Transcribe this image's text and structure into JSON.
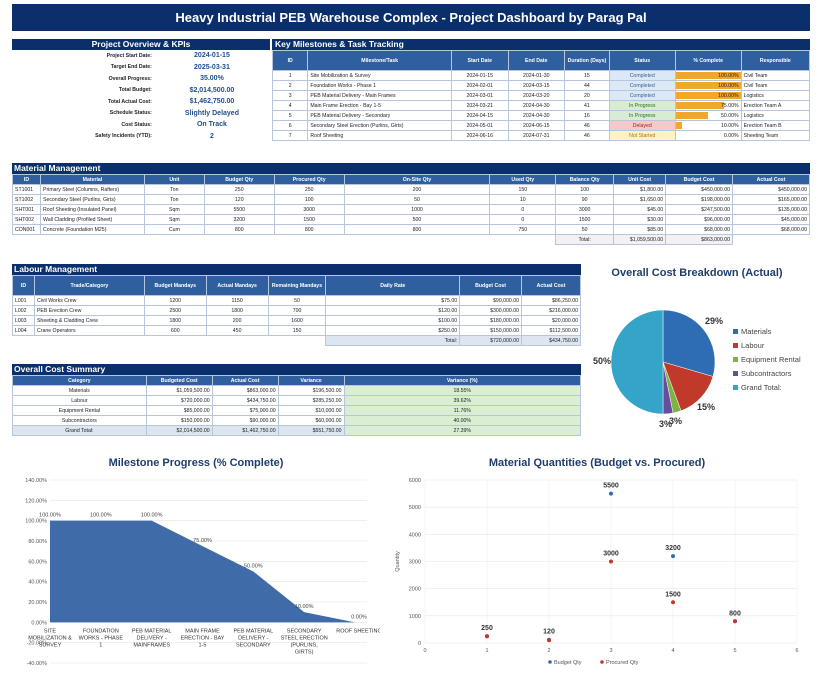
{
  "title": "Heavy Industrial PEB Warehouse Complex - Project Dashboard by Parag Pal",
  "overview": {
    "header": "Project Overview & KPIs",
    "rows": [
      {
        "label": "Project Start Date:",
        "value": "2024-01-15"
      },
      {
        "label": "Target End Date:",
        "value": "2025-03-31"
      },
      {
        "label": "Overall Progress:",
        "value": "35.00%"
      },
      {
        "label": "Total Budget:",
        "value": "$2,014,500.00"
      },
      {
        "label": "Total Actual Cost:",
        "value": "$1,462,750.00"
      },
      {
        "label": "Schedule Status:",
        "value": "Slightly Delayed"
      },
      {
        "label": "Cost Status:",
        "value": "On Track"
      },
      {
        "label": "Safety Incidents (YTD):",
        "value": "2"
      }
    ]
  },
  "milestones": {
    "header": "Key Milestones & Task Tracking",
    "columns": [
      "ID",
      "Milestone/Task",
      "Start Date",
      "End Date",
      "Duration (Days)",
      "Status",
      "% Complete",
      "Responsible"
    ],
    "rows": [
      {
        "id": "1",
        "task": "Site Mobilization & Survey",
        "start": "2024-01-15",
        "end": "2024-01-30",
        "dur": "15",
        "status": "Completed",
        "cls": "st-comp",
        "pct": "100.00%",
        "pv": 1.0,
        "resp": "Civil Team"
      },
      {
        "id": "2",
        "task": "Foundation Works - Phase 1",
        "start": "2024-02-01",
        "end": "2024-03-15",
        "dur": "44",
        "status": "Completed",
        "cls": "st-comp",
        "pct": "100.00%",
        "pv": 1.0,
        "resp": "Civil Team"
      },
      {
        "id": "3",
        "task": "PEB Material Delivery - Main Frames",
        "start": "2024-03-01",
        "end": "2024-03-20",
        "dur": "20",
        "status": "Completed",
        "cls": "st-comp",
        "pct": "100.00%",
        "pv": 1.0,
        "resp": "Logistics"
      },
      {
        "id": "4",
        "task": "Main Frame Erection - Bay 1-5",
        "start": "2024-03-21",
        "end": "2024-04-30",
        "dur": "41",
        "status": "In Progress",
        "cls": "st-prog",
        "pct": "75.00%",
        "pv": 0.75,
        "resp": "Erection Team A"
      },
      {
        "id": "5",
        "task": "PEB Material Delivery - Secondary",
        "start": "2024-04-15",
        "end": "2024-04-30",
        "dur": "16",
        "status": "In Progress",
        "cls": "st-prog",
        "pct": "50.00%",
        "pv": 0.5,
        "resp": "Logistics"
      },
      {
        "id": "6",
        "task": "Secondary Steel Erection (Purlins, Girts)",
        "start": "2024-05-01",
        "end": "2024-06-15",
        "dur": "46",
        "status": "Delayed",
        "cls": "st-del",
        "pct": "10.00%",
        "pv": 0.1,
        "resp": "Erection Team B"
      },
      {
        "id": "7",
        "task": "Roof Sheeting",
        "start": "2024-06-16",
        "end": "2024-07-31",
        "dur": "46",
        "status": "Not Started",
        "cls": "st-not",
        "pct": "0.00%",
        "pv": 0.0,
        "resp": "Sheeting Team"
      }
    ]
  },
  "material": {
    "header": "Material Management",
    "columns": [
      "ID",
      "Material",
      "Unit",
      "Budget Qty",
      "Procured Qty",
      "On-Site Qty",
      "Used Qty",
      "Balance Qty",
      "Unit Cost",
      "Budget Cost",
      "Actual Cost"
    ],
    "rows": [
      [
        "ST1001",
        "Primary Steel (Columns, Rafters)",
        "Ton",
        "250",
        "250",
        "200",
        "150",
        "100",
        "$1,800.00",
        "$450,000.00",
        "$450,000.00"
      ],
      [
        "ST1002",
        "Secondary Steel (Purlins, Girts)",
        "Ton",
        "120",
        "100",
        "50",
        "10",
        "90",
        "$1,650.00",
        "$198,000.00",
        "$165,000.00"
      ],
      [
        "SHT001",
        "Roof Sheeting (Insulated Panel)",
        "Sqm",
        "5500",
        "3000",
        "1000",
        "0",
        "3000",
        "$45.00",
        "$247,500.00",
        "$135,000.00"
      ],
      [
        "SHT002",
        "Wall Cladding (Profiled Sheet)",
        "Sqm",
        "3200",
        "1500",
        "500",
        "0",
        "1500",
        "$30.00",
        "$96,000.00",
        "$45,000.00"
      ],
      [
        "CON001",
        "Concrete (Foundation M25)",
        "Cum",
        "800",
        "800",
        "800",
        "750",
        "50",
        "$85.00",
        "$68,000.00",
        "$68,000.00"
      ]
    ],
    "total_label": "Total:",
    "total_budget": "$1,059,500.00",
    "total_actual": "$863,000.00"
  },
  "labour": {
    "header": "Labour Management",
    "columns": [
      "ID",
      "Trade/Category",
      "Budget Mandays",
      "Actual Mandays",
      "Remaining Mandays",
      "Daily Rate",
      "Budget Cost",
      "Actual Cost"
    ],
    "rows": [
      [
        "L001",
        "Civil Works Crew",
        "1200",
        "1150",
        "50",
        "$75.00",
        "$90,000.00",
        "$86,250.00"
      ],
      [
        "L002",
        "PEB Erection Crew",
        "2500",
        "1800",
        "700",
        "$120.00",
        "$300,000.00",
        "$216,000.00"
      ],
      [
        "L003",
        "Sheeting & Cladding Crew",
        "1800",
        "200",
        "1600",
        "$100.00",
        "$180,000.00",
        "$20,000.00"
      ],
      [
        "L004",
        "Crane Operators",
        "600",
        "450",
        "150",
        "$250.00",
        "$150,000.00",
        "$112,500.00"
      ]
    ],
    "total_label": "Total:",
    "total_budget": "$720,000.00",
    "total_actual": "$434,750.00"
  },
  "costsum": {
    "header": "Overall Cost Summary",
    "columns": [
      "Category",
      "Budgeted Cost",
      "Actual Cost",
      "Variance",
      "Variance (%)"
    ],
    "rows": [
      [
        "Materials",
        "$1,059,500.00",
        "$863,000.00",
        "$196,500.00",
        "18.55%"
      ],
      [
        "Labour",
        "$720,000.00",
        "$434,750.00",
        "$285,250.00",
        "39.62%"
      ],
      [
        "Equipment Rental",
        "$85,000.00",
        "$75,000.00",
        "$10,000.00",
        "11.76%"
      ],
      [
        "Subcontractors",
        "$150,000.00",
        "$90,000.00",
        "$60,000.00",
        "40.00%"
      ],
      [
        "Grand Total:",
        "$2,014,500.00",
        "$1,462,750.00",
        "$551,750.00",
        "27.39%"
      ]
    ]
  },
  "chart_data": [
    {
      "type": "pie",
      "title": "Overall Cost Breakdown (Actual)",
      "labels": [
        "Materials",
        "Labour",
        "Equipment Rental",
        "Subcontractors",
        "Grand Total:"
      ],
      "values": [
        863000,
        434750,
        75000,
        90000,
        1462750
      ],
      "data_labels": [
        "29%",
        "15%",
        "3%",
        "3%",
        "50%"
      ],
      "colors": [
        "#2e6db4",
        "#c0392b",
        "#7fb344",
        "#6a4c9c",
        "#34a4c9"
      ],
      "legend": "right"
    },
    {
      "type": "area",
      "title": "Milestone Progress (% Complete)",
      "categories": [
        "SITE MOBILIZATION & SURVEY",
        "FOUNDATION WORKS - PHASE 1",
        "PEB MATERIAL DELIVERY - MAINFRAMES",
        "MAIN FRAME ERECTION - BAY 1-5",
        "PEB MATERIAL DELIVERY - SECONDARY",
        "SECONDARY STEEL ERECTION (PURLINS, GIRTS)",
        "ROOF SHEETING"
      ],
      "values": [
        100,
        100,
        100,
        75,
        50,
        10,
        0
      ],
      "value_labels": [
        "100.00%",
        "100.00%",
        "100.00%",
        "75.00%",
        "50.00%",
        "10.00%",
        "0.00%"
      ],
      "yticks": [
        "140.00%",
        "120.00%",
        "100.00%",
        "80.00%",
        "60.00%",
        "40.00%",
        "20.00%",
        "0.00%",
        "-20.00%",
        "-40.00%"
      ],
      "ylim": [
        -40,
        140
      ]
    },
    {
      "type": "scatter",
      "title": "Material Quantities (Budget vs. Procured)",
      "ylabel": "Quantity",
      "series": [
        {
          "name": "Budget Qty",
          "color": "#2e6db4",
          "x": [
            1,
            2,
            3,
            4,
            5
          ],
          "y": [
            250,
            120,
            5500,
            3200,
            800
          ]
        },
        {
          "name": "Procured Qty",
          "color": "#c0392b",
          "x": [
            1,
            2,
            3,
            4,
            5
          ],
          "y": [
            250,
            100,
            3000,
            1500,
            800
          ]
        }
      ],
      "point_labels": [
        {
          "x": 1,
          "y": 250,
          "t": "250"
        },
        {
          "x": 2,
          "y": 120,
          "t": "120"
        },
        {
          "x": 3,
          "y": 5500,
          "t": "5500"
        },
        {
          "x": 3,
          "y": 3000,
          "t": "3000"
        },
        {
          "x": 4,
          "y": 3200,
          "t": "3200"
        },
        {
          "x": 4,
          "y": 1500,
          "t": "1500"
        },
        {
          "x": 5,
          "y": 800,
          "t": "800"
        }
      ],
      "xticks": [
        "0",
        "1",
        "2",
        "3",
        "4",
        "5",
        "6"
      ],
      "yticks": [
        "0",
        "1000",
        "2000",
        "3000",
        "4000",
        "5000",
        "6000"
      ],
      "xlim": [
        0,
        6
      ],
      "ylim": [
        0,
        6000
      ]
    }
  ]
}
